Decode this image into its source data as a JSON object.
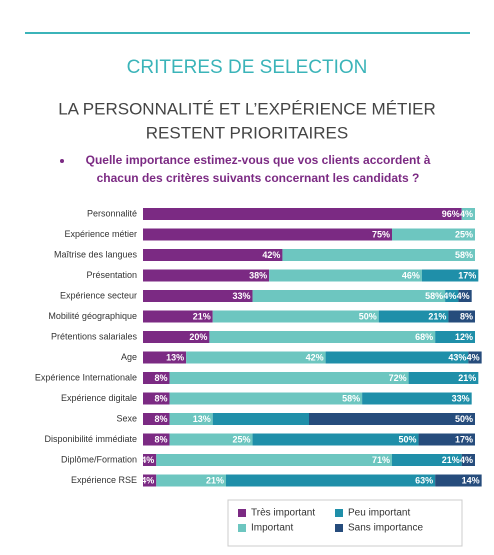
{
  "header": "CRITERES DE SELECTION",
  "chart_data": {
    "type": "stacked-bar",
    "title": [
      "LA PERSONNALITÉ ET L’EXPÉRIENCE MÉTIER",
      "RESTENT PRIORITAIRES"
    ],
    "subtitle": [
      "Quelle importance estimez-vous que vos clients accordent à",
      "chacun des critères suivants concernant les candidats ?"
    ],
    "categories": [
      "Personnalité",
      "Expérience métier",
      "Maîtrise des langues",
      "Présentation",
      "Expérience secteur",
      "Mobilité géographique",
      "Prétentions salariales",
      "Age",
      "Expérience Internationale",
      "Expérience digitale",
      "Sexe",
      "Disponibilité immédiate",
      "Diplôme/Formation",
      "Expérience RSE"
    ],
    "series": [
      {
        "name": "Très important",
        "color": "#7b2a83",
        "values": [
          96,
          75,
          42,
          38,
          33,
          21,
          20,
          13,
          8,
          8,
          8,
          8,
          4,
          4
        ],
        "value_labels": [
          "96%",
          "75%",
          "42%",
          "38%",
          "33%",
          "21%",
          "20%",
          "13%",
          "8%",
          "8%",
          "8%",
          "8%",
          "4%",
          "4%"
        ]
      },
      {
        "name": "Important",
        "color": "#6dc6c0",
        "values": [
          4,
          25,
          58,
          46,
          58,
          50,
          68,
          42,
          72,
          58,
          13,
          25,
          71,
          21
        ],
        "value_labels": [
          "4%",
          "25%",
          "58%",
          "46%",
          "58%",
          "50%",
          "68%",
          "42%",
          "72%",
          "58%",
          "13%",
          "25%",
          "71%",
          "21%"
        ]
      },
      {
        "name": "Peu important",
        "color": "#1f8fa9",
        "values": [
          null,
          null,
          null,
          17,
          4,
          21,
          12,
          43,
          21,
          33,
          29,
          50,
          21,
          63
        ],
        "value_labels": [
          null,
          null,
          null,
          "17%",
          "4%",
          "21%",
          "12%",
          "43%",
          "21%",
          "33%",
          null,
          "50%",
          "21%",
          "63%"
        ]
      },
      {
        "name": "Sans importance",
        "color": "#264c7c",
        "values": [
          null,
          null,
          null,
          null,
          4,
          8,
          null,
          4,
          null,
          null,
          50,
          17,
          4,
          14
        ],
        "value_labels": [
          null,
          null,
          null,
          null,
          "4%",
          "8%",
          null,
          "4%",
          null,
          null,
          "50%",
          "17%",
          "4%",
          "14%"
        ]
      }
    ]
  }
}
